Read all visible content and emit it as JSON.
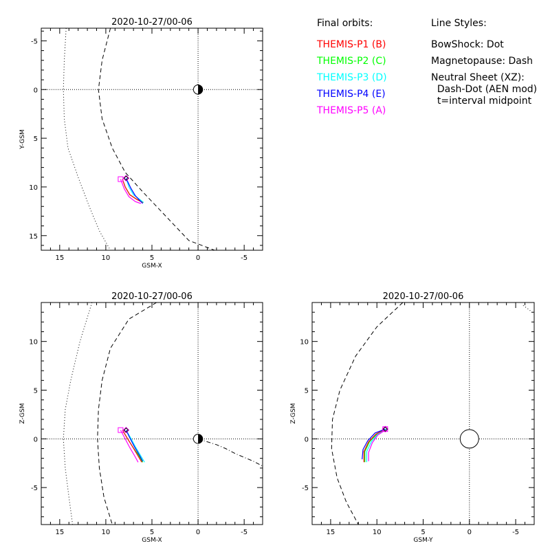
{
  "legend": {
    "orbits_heading": "Final orbits:",
    "orbits": [
      {
        "label": "THEMIS-P1 (B)",
        "color": "#ff0000"
      },
      {
        "label": "THEMIS-P2 (C)",
        "color": "#00ff00"
      },
      {
        "label": "THEMIS-P3 (D)",
        "color": "#00ffff"
      },
      {
        "label": "THEMIS-P4 (E)",
        "color": "#0000ff"
      },
      {
        "label": "THEMIS-P5 (A)",
        "color": "#ff00ff"
      }
    ],
    "styles_heading": "Line Styles:",
    "styles": [
      "BowShock: Dot",
      "Magnetopause: Dash",
      "Neutral Sheet (XZ):",
      "  Dash-Dot (AEN mod)",
      "  t=interval midpoint"
    ]
  },
  "chart_data": [
    {
      "type": "line",
      "title": "2020-10-27/00-06",
      "xlabel": "GSM-X",
      "ylabel": "Y-GSM",
      "xlim": [
        17,
        -7
      ],
      "ylim": [
        -6.3,
        16.5
      ],
      "y_inverted": true,
      "xticks": [
        15,
        10,
        5,
        0,
        -5
      ],
      "yticks": [
        -5,
        0,
        5,
        10,
        15
      ],
      "earth": {
        "x": 0,
        "y": 0,
        "r": 0.5,
        "style": "half"
      },
      "curves": [
        {
          "name": "BowShock",
          "style": "dot",
          "points": [
            [
              14.3,
              -6.3
            ],
            [
              14.5,
              -3
            ],
            [
              14.6,
              0
            ],
            [
              14.5,
              3
            ],
            [
              14.1,
              6
            ],
            [
              13.0,
              9
            ],
            [
              11.8,
              12
            ],
            [
              10.7,
              14.5
            ],
            [
              9.5,
              16.5
            ]
          ]
        },
        {
          "name": "Magnetopause",
          "style": "dash",
          "points": [
            [
              9.5,
              -6.3
            ],
            [
              10.4,
              -3
            ],
            [
              10.8,
              0
            ],
            [
              10.4,
              3
            ],
            [
              9.3,
              6
            ],
            [
              7.9,
              8.5
            ],
            [
              6.0,
              10.5
            ],
            [
              3.5,
              13.0
            ],
            [
              1.0,
              15.5
            ],
            [
              -1.8,
              16.5
            ]
          ]
        }
      ],
      "series": [
        {
          "color": "#00ff00",
          "points": [
            [
              8.2,
              9.2
            ],
            [
              7.9,
              10.0
            ],
            [
              7.4,
              10.8
            ],
            [
              6.6,
              11.3
            ],
            [
              5.9,
              11.6
            ]
          ]
        },
        {
          "color": "#00ffff",
          "points": [
            [
              7.8,
              9.1
            ],
            [
              7.5,
              10.0
            ],
            [
              7.0,
              10.8
            ],
            [
              6.3,
              11.3
            ],
            [
              5.9,
              11.6
            ]
          ]
        },
        {
          "color": "#ff0000",
          "points": [
            [
              8.2,
              9.2
            ],
            [
              7.9,
              10.0
            ],
            [
              7.4,
              10.8
            ],
            [
              6.6,
              11.3
            ],
            [
              6.0,
              11.6
            ]
          ]
        },
        {
          "color": "#0000ff",
          "points": [
            [
              7.8,
              9.1
            ],
            [
              7.3,
              10.1
            ],
            [
              6.8,
              10.9
            ],
            [
              6.3,
              11.4
            ],
            [
              6.0,
              11.7
            ]
          ]
        },
        {
          "color": "#ff00ff",
          "points": [
            [
              8.4,
              9.2
            ],
            [
              8.0,
              10.2
            ],
            [
              7.5,
              11.0
            ],
            [
              6.8,
              11.5
            ],
            [
              6.2,
              11.7
            ]
          ]
        }
      ],
      "markers": [
        {
          "type": "square",
          "x": 8.4,
          "y": 9.2,
          "color": "#ff00ff"
        },
        {
          "type": "diamond",
          "x": 7.8,
          "y": 9.1,
          "color": "#ff00ff"
        },
        {
          "type": "diamond",
          "x": 7.8,
          "y": 9.1,
          "color": "#000000"
        }
      ]
    },
    {
      "type": "line",
      "title": "2020-10-27/00-06",
      "xlabel": "GSM-X",
      "ylabel": "Z-GSM",
      "xlim": [
        17,
        -7
      ],
      "ylim": [
        -8.8,
        14.0
      ],
      "y_inverted": false,
      "xticks": [
        15,
        10,
        5,
        0,
        -5
      ],
      "yticks": [
        -5,
        0,
        5,
        10
      ],
      "earth": {
        "x": 0,
        "y": 0,
        "r": 0.5,
        "style": "half"
      },
      "curves": [
        {
          "name": "BowShock",
          "style": "dot",
          "points": [
            [
              11.5,
              14.0
            ],
            [
              12.8,
              10
            ],
            [
              13.8,
              6
            ],
            [
              14.4,
              3
            ],
            [
              14.6,
              0
            ],
            [
              14.4,
              -3
            ],
            [
              14.0,
              -6
            ],
            [
              13.6,
              -8.8
            ]
          ]
        },
        {
          "name": "Magnetopause",
          "style": "dash",
          "points": [
            [
              4.5,
              14.0
            ],
            [
              7.5,
              12.3
            ],
            [
              9.5,
              9.3
            ],
            [
              10.4,
              6
            ],
            [
              10.8,
              3
            ],
            [
              10.9,
              0
            ],
            [
              10.7,
              -3
            ],
            [
              10.2,
              -6
            ],
            [
              9.3,
              -8.8
            ]
          ]
        },
        {
          "name": "Neutral Sheet",
          "style": "dashdot",
          "points": [
            [
              0,
              0
            ],
            [
              -1,
              -0.3
            ],
            [
              -2,
              -0.6
            ],
            [
              -3,
              -1.0
            ],
            [
              -4,
              -1.5
            ],
            [
              -5,
              -1.9
            ],
            [
              -6,
              -2.3
            ],
            [
              -7,
              -2.8
            ]
          ]
        }
      ],
      "series": [
        {
          "color": "#00ff00",
          "points": [
            [
              8.2,
              0.9
            ],
            [
              7.7,
              0.1
            ],
            [
              7.1,
              -0.8
            ],
            [
              6.5,
              -1.6
            ],
            [
              6.0,
              -2.4
            ]
          ]
        },
        {
          "color": "#00ffff",
          "points": [
            [
              7.8,
              0.9
            ],
            [
              7.3,
              0.1
            ],
            [
              6.8,
              -0.8
            ],
            [
              6.3,
              -1.6
            ],
            [
              5.8,
              -2.4
            ]
          ]
        },
        {
          "color": "#ff0000",
          "points": [
            [
              8.2,
              0.9
            ],
            [
              7.7,
              0.1
            ],
            [
              7.1,
              -0.8
            ],
            [
              6.6,
              -1.6
            ],
            [
              6.1,
              -2.4
            ]
          ]
        },
        {
          "color": "#0000ff",
          "points": [
            [
              7.8,
              0.9
            ],
            [
              7.4,
              0.1
            ],
            [
              6.9,
              -0.8
            ],
            [
              6.4,
              -1.6
            ],
            [
              6.0,
              -2.3
            ]
          ]
        },
        {
          "color": "#ff00ff",
          "points": [
            [
              8.4,
              0.9
            ],
            [
              7.9,
              0.0
            ],
            [
              7.4,
              -0.9
            ],
            [
              6.9,
              -1.7
            ],
            [
              6.5,
              -2.4
            ]
          ]
        }
      ],
      "markers": [
        {
          "type": "square",
          "x": 8.4,
          "y": 0.9,
          "color": "#ff00ff"
        },
        {
          "type": "diamond",
          "x": 7.8,
          "y": 0.9,
          "color": "#ff00ff"
        },
        {
          "type": "diamond",
          "x": 7.8,
          "y": 0.9,
          "color": "#000000"
        }
      ]
    },
    {
      "type": "line",
      "title": "2020-10-27/00-06",
      "xlabel": "GSM-Y",
      "ylabel": "Z-GSM",
      "xlim": [
        17,
        -7
      ],
      "ylim": [
        -8.8,
        14.0
      ],
      "y_inverted": false,
      "xticks": [
        15,
        10,
        5,
        0,
        -5
      ],
      "yticks": [
        -5,
        0,
        5,
        10
      ],
      "earth": {
        "x": 0,
        "y": 0,
        "r": 1.0,
        "style": "open"
      },
      "curves": [
        {
          "name": "Magnetopause",
          "style": "dash",
          "points": [
            [
              7.2,
              14.0
            ],
            [
              10.0,
              11.5
            ],
            [
              12.3,
              8.5
            ],
            [
              14.0,
              5.0
            ],
            [
              14.8,
              2.0
            ],
            [
              14.9,
              -1.0
            ],
            [
              14.3,
              -4.0
            ],
            [
              13.3,
              -6.5
            ],
            [
              12.0,
              -8.8
            ]
          ]
        },
        {
          "name": "BowShock",
          "style": "dot",
          "points": [
            [
              -5.8,
              13.7
            ],
            [
              -6.4,
              13.3
            ],
            [
              -7,
              12.8
            ]
          ]
        }
      ],
      "series": [
        {
          "color": "#00ff00",
          "points": [
            [
              9.0,
              1.0
            ],
            [
              10.0,
              0.5
            ],
            [
              10.8,
              -0.3
            ],
            [
              11.3,
              -1.3
            ],
            [
              11.3,
              -2.4
            ]
          ]
        },
        {
          "color": "#00ffff",
          "points": [
            [
              9.0,
              1.0
            ],
            [
              9.9,
              0.5
            ],
            [
              10.6,
              -0.3
            ],
            [
              11.1,
              -1.3
            ],
            [
              11.1,
              -2.4
            ]
          ]
        },
        {
          "color": "#ff0000",
          "points": [
            [
              9.1,
              1.0
            ],
            [
              10.1,
              0.5
            ],
            [
              10.9,
              -0.3
            ],
            [
              11.4,
              -1.3
            ],
            [
              11.4,
              -2.4
            ]
          ]
        },
        {
          "color": "#0000ff",
          "points": [
            [
              9.1,
              1.0
            ],
            [
              10.2,
              0.6
            ],
            [
              11.0,
              -0.2
            ],
            [
              11.5,
              -1.1
            ],
            [
              11.6,
              -2.1
            ]
          ]
        },
        {
          "color": "#ff00ff",
          "points": [
            [
              9.1,
              0.9
            ],
            [
              9.9,
              0.4
            ],
            [
              10.5,
              -0.4
            ],
            [
              10.9,
              -1.4
            ],
            [
              10.9,
              -2.3
            ]
          ]
        }
      ],
      "markers": [
        {
          "type": "square",
          "x": 9.1,
          "y": 1.0,
          "color": "#ff00ff"
        },
        {
          "type": "diamond",
          "x": 9.1,
          "y": 1.0,
          "color": "#ff00ff"
        },
        {
          "type": "diamond",
          "x": 9.1,
          "y": 1.0,
          "color": "#000000"
        }
      ]
    }
  ]
}
